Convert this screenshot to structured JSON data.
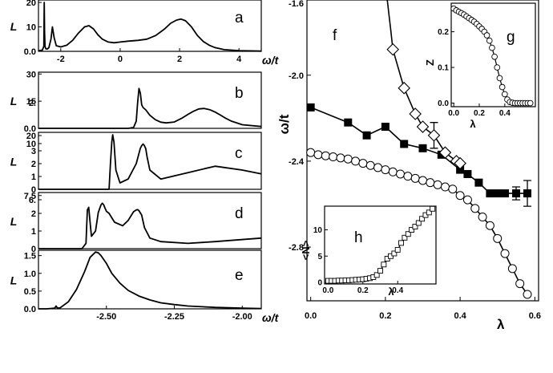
{
  "chart_data": [
    {
      "id": "a",
      "type": "line",
      "panel_label": "a",
      "xlim": [
        -2.75,
        4.75
      ],
      "ylim": [
        0,
        21
      ],
      "yticks": [
        0.0,
        10,
        20
      ],
      "ytick_labels": [
        "0.0",
        "10",
        "20"
      ],
      "xticks": [
        -2,
        0,
        2,
        4
      ],
      "xtick_labels": [
        "-2",
        "0",
        "2",
        "4"
      ],
      "ylabel": "L",
      "xlabel": "ω/t",
      "x": [
        -2.75,
        -2.62,
        -2.57,
        -2.555,
        -2.545,
        -2.53,
        -2.5,
        -2.45,
        -2.4,
        -2.33,
        -2.28,
        -2.22,
        -2.15,
        -2.0,
        -1.8,
        -1.6,
        -1.4,
        -1.2,
        -1.05,
        -0.9,
        -0.75,
        -0.6,
        -0.4,
        -0.2,
        0.0,
        0.3,
        0.6,
        0.9,
        1.2,
        1.5,
        1.7,
        1.9,
        2.05,
        2.2,
        2.4,
        2.6,
        2.8,
        3.0,
        3.2,
        3.5,
        4.0,
        4.75
      ],
      "y": [
        0.3,
        0.5,
        2.0,
        20.0,
        8.0,
        2.0,
        1.0,
        1.0,
        1.5,
        5.0,
        10.0,
        5.5,
        2.3,
        1.8,
        2.5,
        4.5,
        7.5,
        10.0,
        10.5,
        9.2,
        6.8,
        5.0,
        3.8,
        3.5,
        3.8,
        4.2,
        4.5,
        5.0,
        6.5,
        9.2,
        11.5,
        12.8,
        13.2,
        12.5,
        10.0,
        6.5,
        4.0,
        2.5,
        1.5,
        0.7,
        0.3,
        0.1
      ]
    },
    {
      "id": "b",
      "type": "line",
      "panel_label": "b",
      "xlim": [
        -2.75,
        -1.93
      ],
      "ylim": [
        0,
        31
      ],
      "yticks": [
        0.0,
        15,
        30
      ],
      "ytick_labels": [
        "0.0",
        "15",
        "30"
      ],
      "extra_tick_label": "2.",
      "ylabel": "L",
      "x": [
        -2.75,
        -2.48,
        -2.44,
        -2.42,
        -2.4,
        -2.39,
        -2.385,
        -2.38,
        -2.375,
        -2.37,
        -2.365,
        -2.355,
        -2.34,
        -2.32,
        -2.3,
        -2.28,
        -2.25,
        -2.22,
        -2.2,
        -2.18,
        -2.16,
        -2.14,
        -2.12,
        -2.1,
        -2.08,
        -2.06,
        -2.04,
        -2.0,
        -1.93
      ],
      "y": [
        0,
        0,
        0,
        0,
        0.5,
        4.0,
        14.0,
        22.0,
        19.5,
        13.0,
        11.5,
        10.2,
        7.2,
        4.8,
        3.4,
        3.0,
        3.5,
        5.8,
        7.7,
        9.4,
        10.7,
        11.0,
        10.3,
        9.0,
        7.3,
        5.5,
        4.0,
        2.0,
        1.0
      ]
    },
    {
      "id": "c",
      "type": "line",
      "panel_label": "c",
      "xlim": [
        -2.75,
        -1.93
      ],
      "ylim": [
        0,
        23
      ],
      "yticks": [
        0,
        1,
        2,
        3,
        10,
        20
      ],
      "ytick_labels": [
        "0",
        "1",
        "2",
        "3",
        "10",
        "20"
      ],
      "ylabel": "L",
      "x": [
        -2.75,
        -2.49,
        -2.485,
        -2.48,
        -2.477,
        -2.472,
        -2.465,
        -2.45,
        -2.42,
        -2.39,
        -2.375,
        -2.37,
        -2.365,
        -2.36,
        -2.355,
        -2.35,
        -2.34,
        -2.3,
        -2.2,
        -2.1,
        -2.0,
        -1.93
      ],
      "y": [
        0,
        0,
        2.0,
        12.0,
        21.0,
        12.0,
        1.5,
        0.5,
        0.8,
        2.0,
        5.5,
        8.0,
        9.5,
        8.0,
        5.0,
        2.5,
        1.5,
        0.8,
        1.3,
        1.8,
        1.5,
        1.2
      ]
    },
    {
      "id": "d",
      "type": "line",
      "panel_label": "d",
      "xlim": [
        -2.75,
        -1.93
      ],
      "ylim": [
        0,
        8
      ],
      "yticks": [
        0,
        1,
        2,
        6,
        7.5
      ],
      "ytick_labels": [
        "0",
        "1",
        "2",
        "6.",
        "7.5"
      ],
      "ylabel": "L",
      "x": [
        -2.75,
        -2.59,
        -2.575,
        -2.57,
        -2.565,
        -2.56,
        -2.555,
        -2.54,
        -2.53,
        -2.52,
        -2.515,
        -2.51,
        -2.505,
        -2.5,
        -2.49,
        -2.47,
        -2.44,
        -2.42,
        -2.4,
        -2.39,
        -2.385,
        -2.38,
        -2.37,
        -2.36,
        -2.34,
        -2.3,
        -2.2,
        -2.1,
        -1.93
      ],
      "y": [
        0,
        0,
        0.3,
        3.0,
        3.8,
        1.5,
        0.7,
        1.0,
        2.2,
        4.5,
        5.0,
        4.5,
        3.5,
        2.6,
        2.0,
        1.5,
        1.3,
        1.6,
        2.5,
        3.0,
        3.1,
        2.8,
        1.9,
        1.2,
        0.6,
        0.4,
        0.3,
        0.4,
        0.6
      ]
    },
    {
      "id": "e",
      "type": "line",
      "panel_label": "e",
      "xlim": [
        -2.75,
        -1.93
      ],
      "ylim": [
        0,
        1.65
      ],
      "yticks": [
        0.0,
        0.5,
        1.0,
        1.5
      ],
      "ytick_labels": [
        "0.0",
        "0.5",
        "1.0",
        "1.5"
      ],
      "xticks": [
        -2.5,
        -2.25,
        -2.0
      ],
      "xtick_labels": [
        "-2.50",
        "-2.25",
        "-2.00"
      ],
      "ylabel": "L",
      "xlabel": "ω/t",
      "x": [
        -2.75,
        -2.72,
        -2.69,
        -2.685,
        -2.68,
        -2.67,
        -2.64,
        -2.61,
        -2.58,
        -2.56,
        -2.54,
        -2.53,
        -2.52,
        -2.5,
        -2.48,
        -2.45,
        -2.42,
        -2.38,
        -2.34,
        -2.3,
        -2.25,
        -2.2,
        -2.1,
        -2.0,
        -1.93
      ],
      "y": [
        0,
        0,
        0.02,
        0.08,
        0.02,
        0.03,
        0.2,
        0.55,
        1.05,
        1.45,
        1.6,
        1.58,
        1.5,
        1.28,
        1.0,
        0.72,
        0.52,
        0.36,
        0.25,
        0.17,
        0.12,
        0.08,
        0.04,
        0.02,
        0.01
      ]
    },
    {
      "id": "f",
      "type": "scatter",
      "panel_label": "f",
      "xlim": [
        -0.01,
        0.61
      ],
      "ylim": [
        -3.05,
        -1.65
      ],
      "xticks": [
        0.0,
        0.2,
        0.4,
        0.6
      ],
      "xtick_labels": [
        "0.0",
        "0.2",
        "0.4",
        "0.6"
      ],
      "yticks": [
        -2.0,
        -2.4,
        -2.8
      ],
      "ytick_labels": [
        "-2.0",
        "-2.4",
        "-2.8"
      ],
      "top_tick_label": "-1.6",
      "xlabel": "λ",
      "ylabel": "ω/t",
      "series": [
        {
          "marker": "square-filled",
          "x": [
            0.0,
            0.1,
            0.15,
            0.2,
            0.25,
            0.3,
            0.35,
            0.4,
            0.42,
            0.45,
            0.48,
            0.5,
            0.52,
            0.55,
            0.58
          ],
          "y": [
            -2.15,
            -2.22,
            -2.28,
            -2.24,
            -2.32,
            -2.34,
            -2.37,
            -2.44,
            -2.46,
            -2.5,
            -2.55,
            -2.55,
            -2.55,
            -2.55,
            -2.55
          ],
          "yerr": [
            0,
            0,
            0,
            0,
            0,
            0,
            0,
            0,
            0,
            0,
            0,
            0,
            0,
            0.03,
            0.06
          ]
        },
        {
          "marker": "circle-open",
          "x": [
            0.0,
            0.02,
            0.04,
            0.06,
            0.08,
            0.1,
            0.12,
            0.14,
            0.16,
            0.18,
            0.2,
            0.22,
            0.24,
            0.26,
            0.28,
            0.3,
            0.32,
            0.34,
            0.36,
            0.38,
            0.4,
            0.42,
            0.44,
            0.46,
            0.48,
            0.5,
            0.52,
            0.54,
            0.56,
            0.58
          ],
          "y": [
            -2.36,
            -2.37,
            -2.375,
            -2.38,
            -2.385,
            -2.39,
            -2.4,
            -2.41,
            -2.42,
            -2.43,
            -2.44,
            -2.45,
            -2.46,
            -2.47,
            -2.48,
            -2.49,
            -2.5,
            -2.51,
            -2.52,
            -2.53,
            -2.56,
            -2.58,
            -2.62,
            -2.66,
            -2.7,
            -2.76,
            -2.83,
            -2.9,
            -2.97,
            -3.02
          ],
          "yerr": []
        },
        {
          "marker": "diamond-open",
          "x": [
            0.22,
            0.25,
            0.28,
            0.3,
            0.33,
            0.36,
            0.39,
            0.4
          ],
          "y": [
            -1.88,
            -2.06,
            -2.18,
            -2.24,
            -2.28,
            -2.36,
            -2.4,
            -2.41
          ],
          "yerr": [
            0,
            0,
            0,
            0,
            0.06,
            0,
            0,
            0
          ]
        }
      ]
    },
    {
      "id": "g",
      "type": "scatter",
      "panel_label": "g",
      "xlim": [
        -0.02,
        0.64
      ],
      "ylim": [
        -0.01,
        0.28
      ],
      "xticks": [
        0.0,
        0.2,
        0.4
      ],
      "xtick_labels": [
        "0.0",
        "0.2",
        "0.4"
      ],
      "yticks": [
        0.0,
        0.1,
        0.2
      ],
      "ytick_labels": [
        "0.0",
        "0.1",
        "0.2"
      ],
      "xlabel": "λ",
      "ylabel": "Z",
      "x": [
        0.0,
        0.02,
        0.04,
        0.06,
        0.08,
        0.1,
        0.12,
        0.14,
        0.16,
        0.18,
        0.2,
        0.22,
        0.24,
        0.26,
        0.28,
        0.3,
        0.32,
        0.34,
        0.36,
        0.38,
        0.4,
        0.42,
        0.44,
        0.46,
        0.48,
        0.5,
        0.52,
        0.54,
        0.56,
        0.58,
        0.6
      ],
      "y": [
        0.265,
        0.26,
        0.256,
        0.252,
        0.248,
        0.243,
        0.238,
        0.233,
        0.228,
        0.222,
        0.215,
        0.208,
        0.2,
        0.19,
        0.175,
        0.155,
        0.13,
        0.1,
        0.07,
        0.045,
        0.025,
        0.01,
        0.003,
        0.001,
        0.0,
        0.0,
        0.0,
        0.0,
        0.0,
        0.0,
        0.0
      ]
    },
    {
      "id": "h",
      "type": "scatter",
      "panel_label": "h",
      "xlim": [
        -0.02,
        0.62
      ],
      "ylim": [
        -0.3,
        14.5
      ],
      "xticks": [
        0.0,
        0.2,
        0.4
      ],
      "xtick_labels": [
        "0.0",
        "0.2",
        "0.4"
      ],
      "yticks": [
        0,
        5,
        10
      ],
      "ytick_labels": [
        "0",
        "5",
        "10"
      ],
      "xlabel": "λ",
      "ylabel": "<N>",
      "x": [
        0.0,
        0.02,
        0.04,
        0.06,
        0.08,
        0.1,
        0.12,
        0.14,
        0.16,
        0.18,
        0.2,
        0.22,
        0.24,
        0.26,
        0.28,
        0.3,
        0.32,
        0.34,
        0.36,
        0.38,
        0.4,
        0.42,
        0.44,
        0.46,
        0.48,
        0.5,
        0.52,
        0.54,
        0.56,
        0.58,
        0.6
      ],
      "y": [
        0.3,
        0.3,
        0.3,
        0.35,
        0.35,
        0.4,
        0.4,
        0.45,
        0.5,
        0.55,
        0.6,
        0.7,
        0.8,
        1.0,
        1.4,
        2.2,
        3.4,
        4.5,
        5.0,
        5.5,
        6.2,
        7.5,
        8.5,
        9.2,
        10.0,
        10.6,
        11.3,
        12.1,
        12.8,
        13.3,
        14.0
      ]
    }
  ]
}
